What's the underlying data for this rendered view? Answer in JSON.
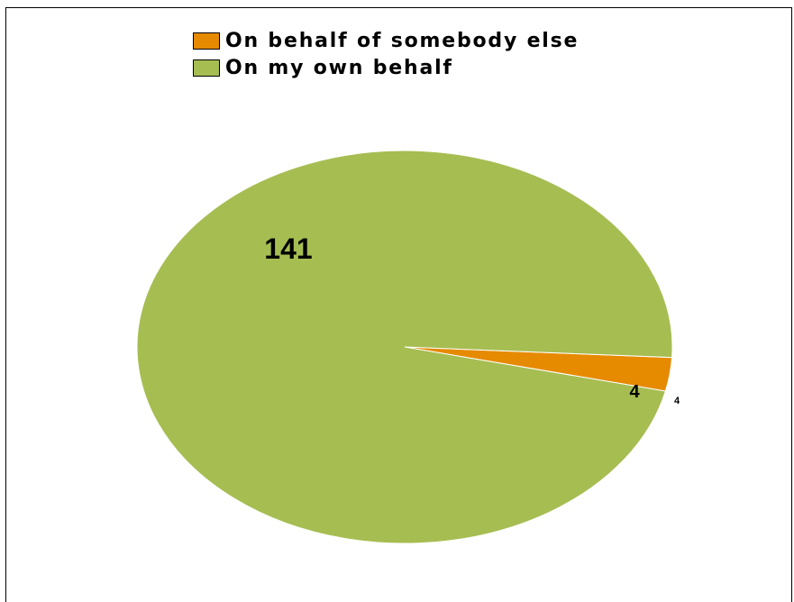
{
  "chart_data": {
    "type": "pie",
    "categories": [
      "On behalf of somebody else",
      "On my own behalf"
    ],
    "values": [
      4,
      141
    ],
    "colors": [
      "#e68a00",
      "#a6bd52"
    ],
    "data_labels": [
      "4",
      "141"
    ],
    "legend_placement": "top",
    "overflow_label": "4"
  }
}
